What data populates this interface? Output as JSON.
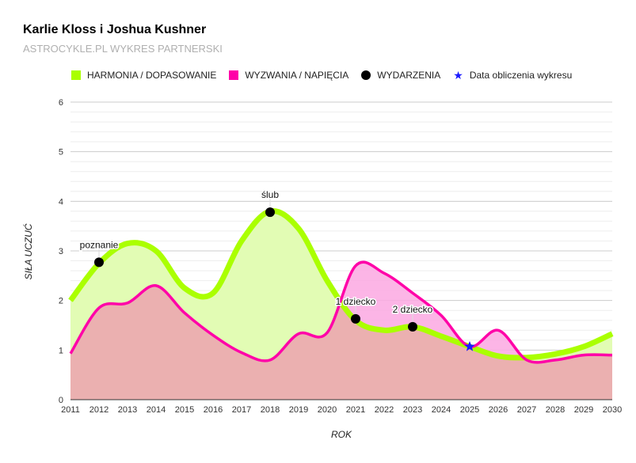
{
  "header": {
    "title": "Karlie Kloss i Joshua Kushner",
    "subtitle": "ASTROCYKLE.PL WYKRES PARTNERSKI"
  },
  "legend": {
    "items": [
      {
        "label": "HARMONIA / DOPASOWANIE",
        "marker": "square",
        "color": "#aaff00"
      },
      {
        "label": "WYZWANIA / NAPIĘCIA",
        "marker": "square",
        "color": "#ff00a8"
      },
      {
        "label": "WYDARZENIA",
        "marker": "circle",
        "color": "#000000"
      },
      {
        "label": "Data obliczenia wykresu",
        "marker": "star",
        "color": "#1a1aff"
      }
    ]
  },
  "colors": {
    "harmony_line": "#aaff00",
    "harmony_fill": "#e2fcb4",
    "tension_line": "#ff00a8",
    "tension_fill": "#fca8e2",
    "overlap_fill": "#ebb0b0",
    "grid_major": "#cccccc",
    "grid_minor": "#eeeeee",
    "star": "#1a1aff"
  },
  "chart_data": {
    "type": "area",
    "title": "Karlie Kloss i Joshua Kushner",
    "subtitle": "ASTROCYKLE.PL WYKRES PARTNERSKI",
    "xlabel": "ROK",
    "ylabel": "SIŁA UCZUĆ",
    "x": [
      2011,
      2012,
      2013,
      2014,
      2015,
      2016,
      2017,
      2018,
      2019,
      2020,
      2021,
      2022,
      2023,
      2024,
      2025,
      2026,
      2027,
      2028,
      2029,
      2030
    ],
    "series": [
      {
        "name": "HARMONIA / DOPASOWANIE",
        "values": [
          2.0,
          2.75,
          3.15,
          3.0,
          2.25,
          2.15,
          3.2,
          3.8,
          3.45,
          2.4,
          1.6,
          1.4,
          1.47,
          1.28,
          1.07,
          0.88,
          0.85,
          0.92,
          1.07,
          1.33
        ]
      },
      {
        "name": "WYZWANIA / NAPIĘCIA",
        "values": [
          0.93,
          1.85,
          1.95,
          2.3,
          1.75,
          1.3,
          0.95,
          0.8,
          1.33,
          1.35,
          2.7,
          2.55,
          2.15,
          1.7,
          1.07,
          1.4,
          0.8,
          0.8,
          0.9,
          0.9
        ]
      }
    ],
    "events": [
      {
        "label": "poznanie",
        "x": 2012,
        "y": 2.77
      },
      {
        "label": "ślub",
        "x": 2018,
        "y": 3.78
      },
      {
        "label": "1 dziecko",
        "x": 2021,
        "y": 1.63
      },
      {
        "label": "2 dziecko",
        "x": 2023,
        "y": 1.47
      }
    ],
    "calculation_date": {
      "label": "Data obliczenia wykresu",
      "x": 2025,
      "y": 1.07
    },
    "xlim": [
      2011,
      2030
    ],
    "ylim": [
      0,
      6
    ],
    "yticks": [
      0,
      1,
      2,
      3,
      4,
      5,
      6
    ],
    "xticks": [
      2011,
      2012,
      2013,
      2014,
      2015,
      2016,
      2017,
      2018,
      2019,
      2020,
      2021,
      2022,
      2023,
      2024,
      2025,
      2026,
      2027,
      2028,
      2029,
      2030
    ],
    "grid": true,
    "minor_grid_step": 0.2,
    "legend_position": "top"
  }
}
